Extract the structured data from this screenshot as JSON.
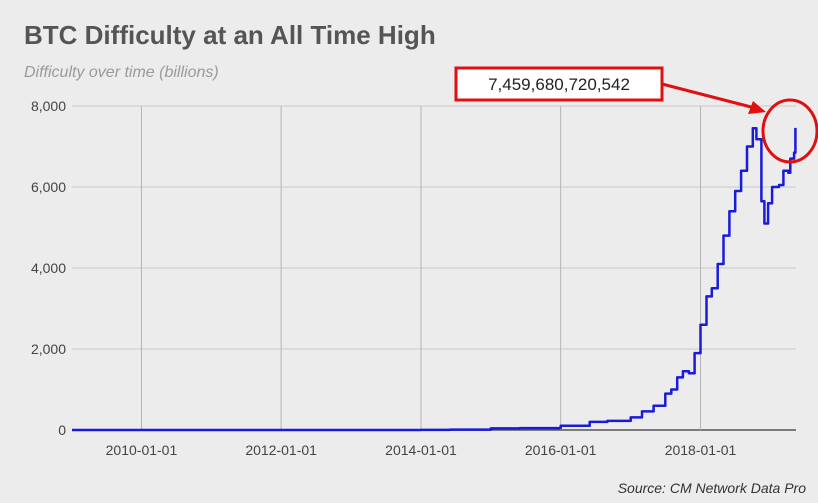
{
  "chart_data": {
    "type": "line",
    "title": "BTC Difficulty at an All Time High",
    "subtitle": "Difficulty over time (billions)",
    "source": "Source: CM Network Data Pro",
    "xlabel": "",
    "ylabel": "",
    "x_ticks": [
      "2010-01-01",
      "2012-01-01",
      "2014-01-01",
      "2016-01-01",
      "2018-01-01"
    ],
    "y_ticks": [
      "0",
      "2,000",
      "4,000",
      "6,000",
      "8,000"
    ],
    "xlim": [
      "2009-01-03",
      "2019-05-15"
    ],
    "ylim": [
      0,
      8000
    ],
    "grid": true,
    "line_color": "#1a1adb",
    "annotation": {
      "text": "7,459,680,720,542",
      "color": "#e01010"
    },
    "series": [
      {
        "name": "",
        "points": [
          [
            "2009-01-03",
            0
          ],
          [
            "2013-06-01",
            0
          ],
          [
            "2014-01-01",
            1.4
          ],
          [
            "2014-06-01",
            10
          ],
          [
            "2015-01-01",
            40
          ],
          [
            "2015-06-01",
            48
          ],
          [
            "2016-01-01",
            105
          ],
          [
            "2016-06-01",
            200
          ],
          [
            "2016-09-01",
            225
          ],
          [
            "2017-01-01",
            310
          ],
          [
            "2017-03-01",
            460
          ],
          [
            "2017-05-01",
            600
          ],
          [
            "2017-07-01",
            900
          ],
          [
            "2017-08-01",
            1000
          ],
          [
            "2017-09-01",
            1300
          ],
          [
            "2017-10-01",
            1450
          ],
          [
            "2017-11-01",
            1400
          ],
          [
            "2017-12-01",
            1900
          ],
          [
            "2018-01-01",
            2600
          ],
          [
            "2018-02-01",
            3300
          ],
          [
            "2018-03-01",
            3500
          ],
          [
            "2018-04-01",
            4100
          ],
          [
            "2018-05-01",
            4800
          ],
          [
            "2018-06-01",
            5400
          ],
          [
            "2018-07-01",
            5900
          ],
          [
            "2018-08-01",
            6400
          ],
          [
            "2018-09-01",
            7000
          ],
          [
            "2018-10-01",
            7450
          ],
          [
            "2018-10-20",
            7180
          ],
          [
            "2018-11-15",
            5650
          ],
          [
            "2018-12-01",
            5100
          ],
          [
            "2018-12-20",
            5600
          ],
          [
            "2019-01-10",
            6000
          ],
          [
            "2019-02-15",
            6050
          ],
          [
            "2019-03-10",
            6400
          ],
          [
            "2019-04-05",
            6350
          ],
          [
            "2019-04-15",
            6700
          ],
          [
            "2019-05-05",
            6850
          ],
          [
            "2019-05-12",
            7460
          ]
        ]
      }
    ]
  }
}
